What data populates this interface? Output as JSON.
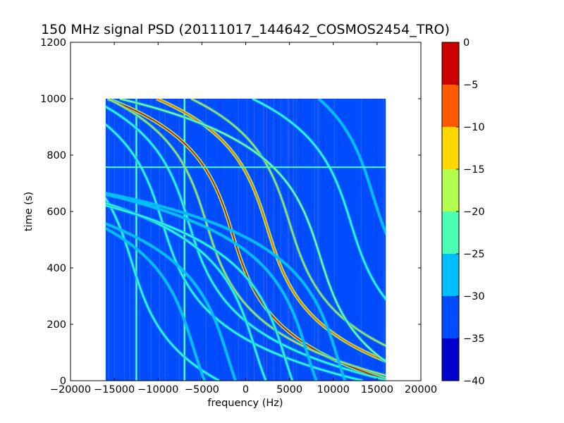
{
  "chart_data": {
    "type": "heatmap",
    "title": "150 MHz signal PSD (20111017_144642_COSMOS2454_TRO)",
    "xlabel": "frequency (Hz)",
    "ylabel": "time (s)",
    "xlim": [
      -20000,
      20000
    ],
    "ylim": [
      0,
      1200
    ],
    "x_ticks": [
      "−20000",
      "−15000",
      "−10000",
      "−5000",
      "0",
      "5000",
      "10000",
      "15000",
      "20000"
    ],
    "y_ticks": [
      "0",
      "200",
      "400",
      "600",
      "800",
      "1000",
      "1200"
    ],
    "data_extent": {
      "x": [
        -16000,
        16000
      ],
      "y": [
        0,
        1000
      ]
    },
    "background_level": -33,
    "horizontal_artifacts": [
      {
        "time": 757,
        "level": -22
      }
    ],
    "vertical_artifacts": [
      {
        "freq": -12500,
        "level": -24
      },
      {
        "freq": -7000,
        "level": -24
      }
    ],
    "traces": [
      {
        "freq_center": -1500,
        "time_center": 520,
        "sweep": 1700,
        "level": -2
      },
      {
        "freq_center": 2500,
        "time_center": 540,
        "sweep": 1700,
        "level": -8
      },
      {
        "freq_center": 5000,
        "time_center": 560,
        "sweep": 1700,
        "level": -12
      },
      {
        "freq_center": -4500,
        "time_center": 560,
        "sweep": 1700,
        "level": -14
      },
      {
        "freq_center": 8500,
        "time_center": 440,
        "sweep": 1700,
        "level": -18
      },
      {
        "freq_center": -6500,
        "time_center": 560,
        "sweep": 1700,
        "level": -22
      },
      {
        "freq_center": 12000,
        "time_center": 560,
        "sweep": 1700,
        "level": -24
      },
      {
        "freq_center": -9500,
        "time_center": 560,
        "sweep": 1700,
        "level": -24
      },
      {
        "freq_center": -13000,
        "time_center": 420,
        "sweep": 1700,
        "level": -24
      },
      {
        "freq_center": 14500,
        "time_center": 660,
        "sweep": 1700,
        "level": -26
      },
      {
        "freq_center": 1000,
        "time_center": 120,
        "sweep": 1700,
        "level": -24
      },
      {
        "freq_center": 4500,
        "time_center": 80,
        "sweep": 1700,
        "level": -24
      },
      {
        "freq_center": 7000,
        "time_center": 100,
        "sweep": 1700,
        "level": -26
      },
      {
        "freq_center": 10500,
        "time_center": 80,
        "sweep": 1700,
        "level": -26
      },
      {
        "freq_center": -2000,
        "time_center": 80,
        "sweep": 1700,
        "level": -26
      },
      {
        "freq_center": -6000,
        "time_center": 120,
        "sweep": 1700,
        "level": -26
      }
    ],
    "colorbar": {
      "range": [
        -40,
        0
      ],
      "tick_labels": [
        "0",
        "−5",
        "−10",
        "−15",
        "−20",
        "−25",
        "−30",
        "−35",
        "−40"
      ],
      "levels": [
        {
          "from": -40,
          "to": -35,
          "color": "#0000cd"
        },
        {
          "from": -35,
          "to": -30,
          "color": "#004dff"
        },
        {
          "from": -30,
          "to": -25,
          "color": "#00bfff"
        },
        {
          "from": -25,
          "to": -20,
          "color": "#4dffb3"
        },
        {
          "from": -20,
          "to": -15,
          "color": "#b3ff4d"
        },
        {
          "from": -15,
          "to": -10,
          "color": "#ffd700"
        },
        {
          "from": -10,
          "to": -5,
          "color": "#ff5a00"
        },
        {
          "from": -5,
          "to": 0,
          "color": "#c80000"
        }
      ]
    },
    "grid": false
  }
}
